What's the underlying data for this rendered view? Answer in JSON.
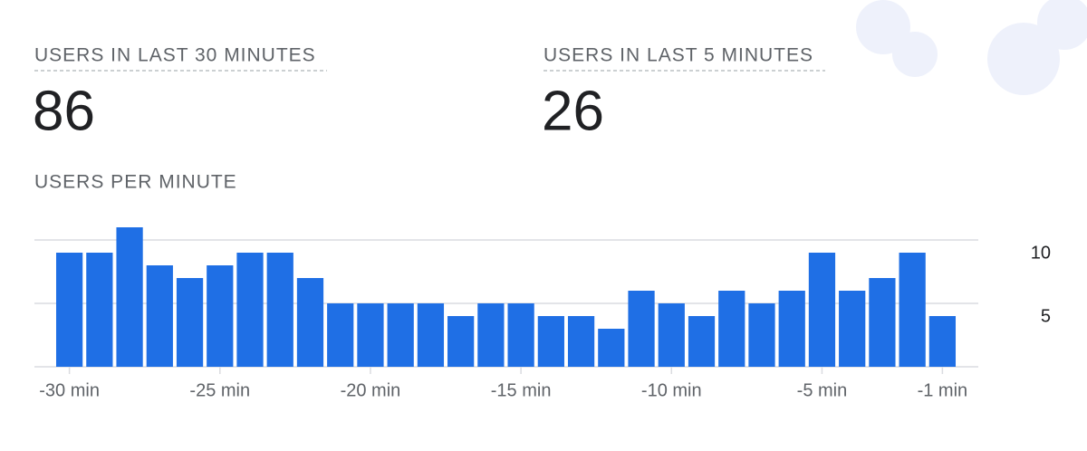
{
  "metrics": [
    {
      "label": "USERS IN LAST 30 MINUTES",
      "value": "86"
    },
    {
      "label": "USERS IN LAST 5 MINUTES",
      "value": "26"
    }
  ],
  "chart_data": {
    "type": "bar",
    "title": "USERS PER MINUTE",
    "categories": [
      "-30 min",
      null,
      null,
      null,
      null,
      "-25 min",
      null,
      null,
      null,
      null,
      "-20 min",
      null,
      null,
      null,
      null,
      "-15 min",
      null,
      null,
      null,
      null,
      "-10 min",
      null,
      null,
      null,
      null,
      "-5 min",
      null,
      null,
      null,
      "-1 min"
    ],
    "values": [
      9,
      9,
      11,
      8,
      7,
      8,
      9,
      9,
      7,
      5,
      5,
      5,
      5,
      4,
      5,
      5,
      4,
      4,
      3,
      6,
      5,
      4,
      6,
      5,
      6,
      9,
      6,
      7,
      9,
      4
    ],
    "color": "#1f6fe5",
    "ylim": [
      0,
      11
    ],
    "yticks": [
      5,
      10
    ],
    "grid": true
  }
}
